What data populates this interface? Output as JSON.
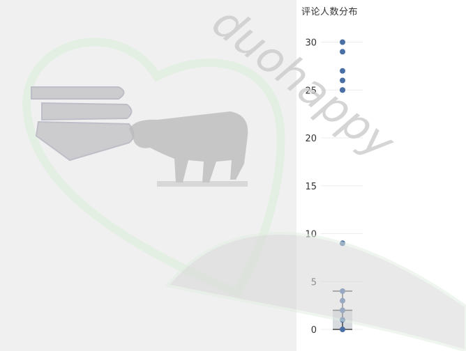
{
  "chart_data": {
    "type": "box",
    "title": "评论人数分布",
    "ylim": [
      -2,
      32
    ],
    "yticks": [
      0,
      5,
      10,
      15,
      20,
      25,
      30
    ],
    "box": {
      "q1": 0,
      "median": 2,
      "q3": 2,
      "whisker_low": 0,
      "whisker_high": 4
    },
    "points": [
      30,
      29,
      27,
      26,
      25,
      25,
      9,
      4,
      3,
      2,
      1,
      0
    ],
    "grid": true,
    "colors": {
      "point": "#4a6fa5",
      "box": "#444444",
      "box_fill": "#c8ccd2"
    }
  },
  "watermark": {
    "text": "duohappy",
    "icons": [
      "heart-outline-icon",
      "books-icon",
      "bull-icon",
      "leaf-icon"
    ]
  }
}
